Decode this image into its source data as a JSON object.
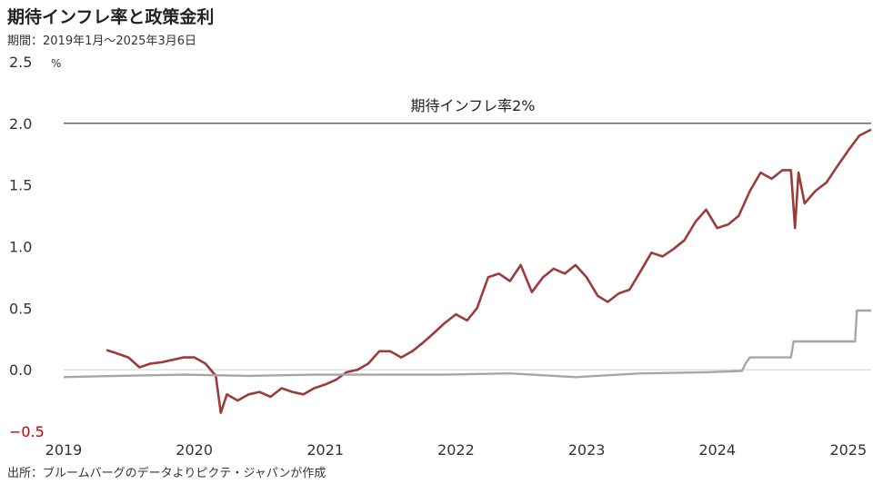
{
  "title": "期待インフレ率と政策金利",
  "period": "期間：2019年1月～2025年3月6日",
  "source": "出所：ブルームバーグのデータよりピクテ・ジャパンが作成",
  "chart_data": {
    "type": "line",
    "y_unit": "%",
    "ylim": [
      -0.5,
      2.5
    ],
    "y_ticks": [
      "2.5",
      "2.0",
      "1.5",
      "1.0",
      "0.5",
      "0.0",
      "−0.5"
    ],
    "x_ticks": [
      "2019",
      "2020",
      "2021",
      "2022",
      "2023",
      "2024",
      "2025"
    ],
    "xlim": [
      "2019-01-01",
      "2025-03-06"
    ],
    "annotation": {
      "text": "期待インフレ率2%",
      "y": 2.0
    },
    "series": [
      {
        "color": "#9b3b3b",
        "points": [
          [
            "2019-05-01",
            0.16
          ],
          [
            "2019-06-01",
            0.13
          ],
          [
            "2019-07-01",
            0.1
          ],
          [
            "2019-08-01",
            0.02
          ],
          [
            "2019-09-01",
            0.05
          ],
          [
            "2019-10-01",
            0.06
          ],
          [
            "2019-11-01",
            0.08
          ],
          [
            "2019-12-01",
            0.1
          ],
          [
            "2020-01-01",
            0.1
          ],
          [
            "2020-02-01",
            0.05
          ],
          [
            "2020-03-01",
            -0.05
          ],
          [
            "2020-03-15",
            -0.35
          ],
          [
            "2020-04-01",
            -0.2
          ],
          [
            "2020-05-01",
            -0.25
          ],
          [
            "2020-06-01",
            -0.2
          ],
          [
            "2020-07-01",
            -0.18
          ],
          [
            "2020-08-01",
            -0.22
          ],
          [
            "2020-09-01",
            -0.15
          ],
          [
            "2020-10-01",
            -0.18
          ],
          [
            "2020-11-01",
            -0.2
          ],
          [
            "2020-12-01",
            -0.15
          ],
          [
            "2021-01-01",
            -0.12
          ],
          [
            "2021-02-01",
            -0.08
          ],
          [
            "2021-03-01",
            -0.02
          ],
          [
            "2021-04-01",
            0.0
          ],
          [
            "2021-05-01",
            0.05
          ],
          [
            "2021-06-01",
            0.15
          ],
          [
            "2021-07-01",
            0.15
          ],
          [
            "2021-08-01",
            0.1
          ],
          [
            "2021-09-01",
            0.15
          ],
          [
            "2021-10-01",
            0.22
          ],
          [
            "2021-11-01",
            0.3
          ],
          [
            "2021-12-01",
            0.38
          ],
          [
            "2022-01-01",
            0.45
          ],
          [
            "2022-02-01",
            0.4
          ],
          [
            "2022-03-01",
            0.5
          ],
          [
            "2022-04-01",
            0.75
          ],
          [
            "2022-05-01",
            0.78
          ],
          [
            "2022-06-01",
            0.72
          ],
          [
            "2022-07-01",
            0.85
          ],
          [
            "2022-08-01",
            0.63
          ],
          [
            "2022-09-01",
            0.75
          ],
          [
            "2022-10-01",
            0.82
          ],
          [
            "2022-11-01",
            0.78
          ],
          [
            "2022-12-01",
            0.85
          ],
          [
            "2023-01-01",
            0.75
          ],
          [
            "2023-02-01",
            0.6
          ],
          [
            "2023-03-01",
            0.55
          ],
          [
            "2023-04-01",
            0.62
          ],
          [
            "2023-05-01",
            0.65
          ],
          [
            "2023-06-01",
            0.8
          ],
          [
            "2023-07-01",
            0.95
          ],
          [
            "2023-08-01",
            0.92
          ],
          [
            "2023-09-01",
            0.98
          ],
          [
            "2023-10-01",
            1.05
          ],
          [
            "2023-11-01",
            1.2
          ],
          [
            "2023-12-01",
            1.3
          ],
          [
            "2024-01-01",
            1.15
          ],
          [
            "2024-02-01",
            1.18
          ],
          [
            "2024-03-01",
            1.25
          ],
          [
            "2024-04-01",
            1.45
          ],
          [
            "2024-05-01",
            1.6
          ],
          [
            "2024-06-01",
            1.55
          ],
          [
            "2024-07-01",
            1.62
          ],
          [
            "2024-07-25",
            1.62
          ],
          [
            "2024-08-05",
            1.15
          ],
          [
            "2024-08-15",
            1.6
          ],
          [
            "2024-09-01",
            1.35
          ],
          [
            "2024-10-01",
            1.45
          ],
          [
            "2024-11-01",
            1.52
          ],
          [
            "2024-12-01",
            1.65
          ],
          [
            "2025-01-01",
            1.78
          ],
          [
            "2025-02-01",
            1.9
          ],
          [
            "2025-03-06",
            1.95
          ]
        ]
      },
      {
        "color": "#a6a6a6",
        "points": [
          [
            "2019-01-01",
            -0.06
          ],
          [
            "2019-06-01",
            -0.05
          ],
          [
            "2019-12-01",
            -0.04
          ],
          [
            "2020-06-01",
            -0.05
          ],
          [
            "2020-12-01",
            -0.04
          ],
          [
            "2021-06-01",
            -0.04
          ],
          [
            "2021-12-01",
            -0.04
          ],
          [
            "2022-06-01",
            -0.03
          ],
          [
            "2022-12-01",
            -0.06
          ],
          [
            "2023-06-01",
            -0.03
          ],
          [
            "2023-12-01",
            -0.02
          ],
          [
            "2024-03-10",
            -0.01
          ],
          [
            "2024-03-20",
            0.05
          ],
          [
            "2024-04-01",
            0.1
          ],
          [
            "2024-07-25",
            0.1
          ],
          [
            "2024-08-01",
            0.23
          ],
          [
            "2025-01-20",
            0.23
          ],
          [
            "2025-01-25",
            0.48
          ],
          [
            "2025-03-06",
            0.48
          ]
        ]
      }
    ]
  }
}
